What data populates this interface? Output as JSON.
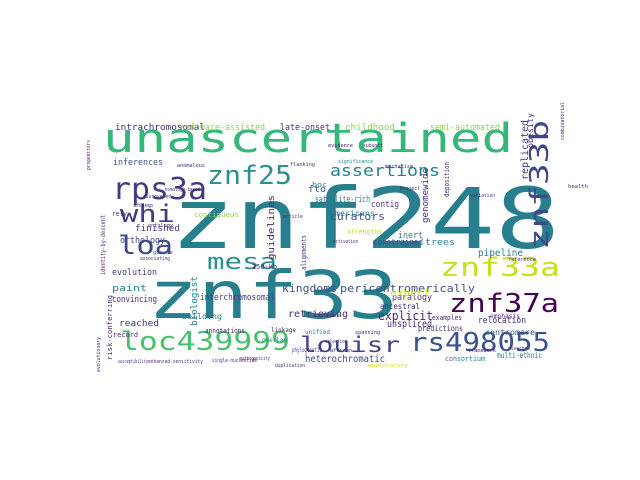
{
  "palette": {
    "teal": "#277f8e",
    "teal_light": "#2c8f8c",
    "blue": "#3b528b",
    "navy": "#3f4788",
    "indigo": "#443983",
    "purple": "#482878",
    "dark_purple": "#440154",
    "green": "#35b779",
    "mint": "#4ac16d",
    "lime": "#8fd744",
    "yellow": "#c8e020",
    "gold": "#d8e219",
    "sea": "#1f9e89",
    "aqua": "#22a884"
  },
  "words": [
    {
      "text": "znf248",
      "color": "teal"
    },
    {
      "text": "znf33",
      "color": "teal"
    },
    {
      "text": "unascertained",
      "color": "green"
    },
    {
      "text": "loc439999",
      "color": "mint"
    },
    {
      "text": "rs498055",
      "color": "blue"
    },
    {
      "text": "znf33a",
      "color": "yellow"
    },
    {
      "text": "znf33b",
      "color": "navy"
    },
    {
      "text": "znf37a",
      "color": "dark_purple"
    },
    {
      "text": "rps3a",
      "color": "indigo"
    },
    {
      "text": "znf25",
      "color": "teal_light"
    },
    {
      "text": "louisr",
      "color": "navy"
    },
    {
      "text": "whi",
      "color": "indigo"
    },
    {
      "text": "loa",
      "color": "navy"
    },
    {
      "text": "mesa",
      "color": "teal_light"
    },
    {
      "text": "assertions",
      "color": "teal"
    },
    {
      "text": "kingdoms",
      "color": "blue"
    },
    {
      "text": "pericentromerically",
      "color": "blue"
    },
    {
      "text": "explicit",
      "color": "purple"
    },
    {
      "text": "heterochromatic",
      "color": "navy"
    },
    {
      "text": "intrachromosomal",
      "color": "purple"
    },
    {
      "text": "software-assisted",
      "color": "lime"
    },
    {
      "text": "late-onset",
      "color": "purple"
    },
    {
      "text": "childhood",
      "color": "lime"
    },
    {
      "text": "semi-automated",
      "color": "lime"
    },
    {
      "text": "curators",
      "color": "blue"
    },
    {
      "text": "satellite-rich",
      "color": "teal"
    },
    {
      "text": "finished",
      "color": "indigo"
    },
    {
      "text": "orthology",
      "color": "navy"
    },
    {
      "text": "evolution",
      "color": "indigo"
    },
    {
      "text": "paint",
      "color": "teal"
    },
    {
      "text": "convincing",
      "color": "purple"
    },
    {
      "text": "reached",
      "color": "indigo"
    },
    {
      "text": "retrieving",
      "color": "purple"
    },
    {
      "text": "interchromosomal",
      "color": "indigo"
    },
    {
      "text": "inferences",
      "color": "blue"
    },
    {
      "text": "fto",
      "color": "blue"
    },
    {
      "text": "contig",
      "color": "indigo"
    },
    {
      "text": "genomewide",
      "color": "purple"
    },
    {
      "text": "replicated",
      "color": "indigo"
    },
    {
      "text": "constrained",
      "color": "blue"
    },
    {
      "text": "trees",
      "color": "teal"
    },
    {
      "text": "inert",
      "color": "teal"
    },
    {
      "text": "pipeline",
      "color": "teal"
    },
    {
      "text": "paralogy",
      "color": "indigo"
    },
    {
      "text": "ancestral",
      "color": "purple"
    },
    {
      "text": "expert",
      "color": "gold"
    },
    {
      "text": "unspliced",
      "color": "purple"
    },
    {
      "text": "relocation",
      "color": "purple"
    },
    {
      "text": "guidelines",
      "color": "purple"
    },
    {
      "text": "biologist",
      "color": "teal"
    },
    {
      "text": "centromere",
      "color": "blue"
    },
    {
      "text": "multi-ethnic",
      "color": "teal"
    },
    {
      "text": "obesity",
      "color": "indigo"
    },
    {
      "text": "americans",
      "color": "teal"
    },
    {
      "text": "building",
      "color": "teal"
    },
    {
      "text": "predictions",
      "color": "purple"
    },
    {
      "text": "consortium",
      "color": "teal"
    },
    {
      "text": "record",
      "color": "purple"
    },
    {
      "text": "annotations",
      "color": "purple"
    },
    {
      "text": "examples",
      "color": "purple"
    },
    {
      "text": "rely",
      "color": "purple"
    },
    {
      "text": "risk-conferring",
      "color": "purple"
    },
    {
      "text": "identity-by-descent",
      "color": "purple"
    },
    {
      "text": "contiguous",
      "color": "lime"
    },
    {
      "text": "emphasis",
      "color": "purple"
    },
    {
      "text": "250-kb",
      "color": "purple"
    },
    {
      "text": "boc",
      "color": "teal"
    },
    {
      "text": "deposition",
      "color": "purple"
    },
    {
      "text": "alignments",
      "color": "indigo"
    },
    {
      "text": "strengths",
      "color": "yellow"
    },
    {
      "text": "phylogenetic",
      "color": "indigo"
    },
    {
      "text": "pathogenicity",
      "color": "purple"
    },
    {
      "text": "unified",
      "color": "teal"
    },
    {
      "text": "linkage",
      "color": "purple"
    },
    {
      "text": "overlap",
      "color": "teal"
    },
    {
      "text": "associating",
      "color": "purple"
    },
    {
      "text": "single-nucleotide",
      "color": "purple"
    },
    {
      "text": "genome",
      "color": "blue"
    },
    {
      "text": "ontology",
      "color": "purple"
    },
    {
      "text": "homology-based",
      "color": "purple"
    },
    {
      "text": "flanking",
      "color": "purple"
    },
    {
      "text": "exploratory",
      "color": "gold"
    },
    {
      "text": "african",
      "color": "purple"
    },
    {
      "text": "framework",
      "color": "purple"
    },
    {
      "text": "diverged",
      "color": "indigo"
    },
    {
      "text": "health",
      "color": "purple"
    },
    {
      "text": "reference",
      "color": "purple"
    },
    {
      "text": "evidence",
      "color": "purple"
    },
    {
      "text": "significance",
      "color": "teal"
    },
    {
      "text": "subunit",
      "color": "purple"
    },
    {
      "text": "chimp",
      "color": "purple"
    },
    {
      "text": "discovered",
      "color": "purple"
    },
    {
      "text": "anomalous",
      "color": "purple"
    },
    {
      "text": "evolutionary",
      "color": "purple"
    },
    {
      "text": "progenitors",
      "color": "purple"
    },
    {
      "text": "duplication",
      "color": "purple"
    },
    {
      "text": "enhanced-sensitivity",
      "color": "purple"
    },
    {
      "text": "susceptibility",
      "color": "purple"
    },
    {
      "text": "article",
      "color": "purple"
    },
    {
      "text": "project",
      "color": "purple"
    },
    {
      "text": "variation",
      "color": "purple"
    },
    {
      "text": "spanning",
      "color": "purple"
    },
    {
      "text": "selection",
      "color": "purple"
    },
    {
      "text": "combinatorial",
      "color": "purple"
    },
    {
      "text": "activation",
      "color": "purple"
    },
    {
      "text": "mechanism",
      "color": "purple"
    },
    {
      "text": "estimate",
      "color": "purple"
    }
  ]
}
